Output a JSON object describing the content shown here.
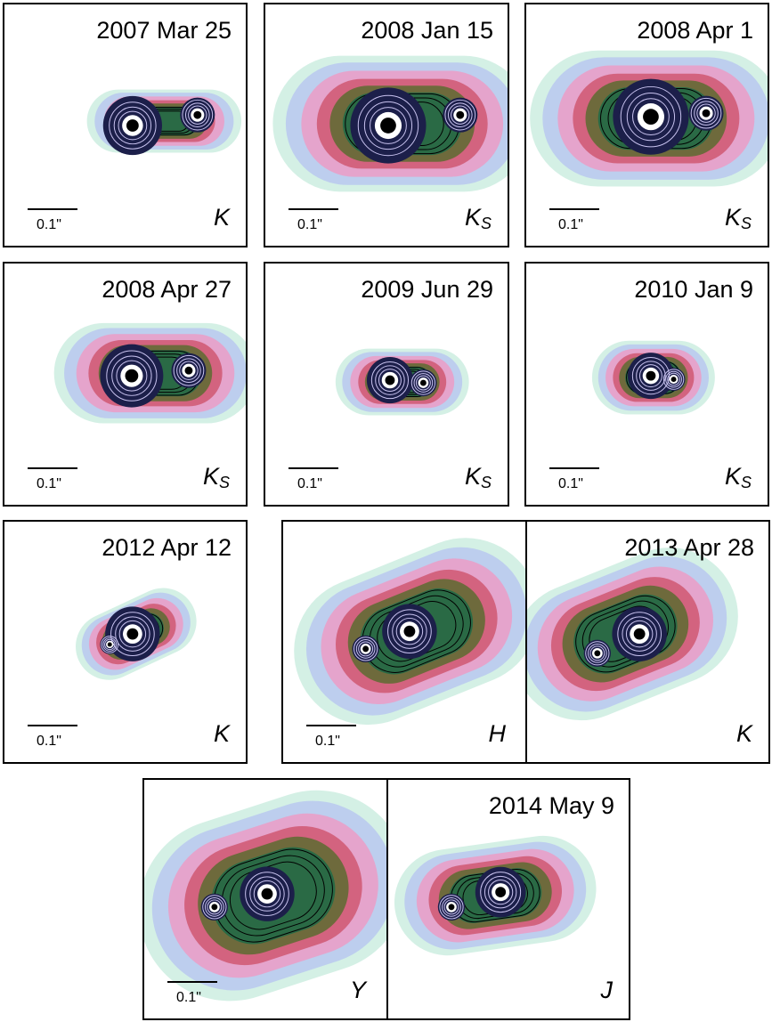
{
  "scale_label": "0.1\"",
  "panels": [
    {
      "date": "2007 Mar 25",
      "band": "K",
      "band_sub": ""
    },
    {
      "date": "2008 Jan 15",
      "band": "K",
      "band_sub": "S"
    },
    {
      "date": "2008 Apr 1",
      "band": "K",
      "band_sub": "S"
    },
    {
      "date": "2008 Apr 27",
      "band": "K",
      "band_sub": "S"
    },
    {
      "date": "2009 Jun 29",
      "band": "K",
      "band_sub": "S"
    },
    {
      "date": "2010 Jan 9",
      "band": "K",
      "band_sub": "S"
    },
    {
      "date": "2012 Apr 12",
      "band": "K",
      "band_sub": ""
    },
    {
      "date": "",
      "band": "H",
      "band_sub": ""
    },
    {
      "date": "2013 Apr 28",
      "band": "K",
      "band_sub": ""
    },
    {
      "date": "",
      "band": "Y",
      "band_sub": ""
    },
    {
      "date": "2014 May 9",
      "band": "J",
      "band_sub": ""
    }
  ],
  "colors": {
    "halo_outer": "#cfeee2",
    "halo_blue": "#b9c8f0",
    "halo_pink": "#e9a0c8",
    "halo_red": "#d2607a",
    "body_brown": "#6e6a3c",
    "body_green": "#2a6a45",
    "core_navy": "#1c1f4a",
    "peak_white": "#ffffff",
    "contour_dark": "#000000",
    "contour_light": "#c9c3f0"
  }
}
